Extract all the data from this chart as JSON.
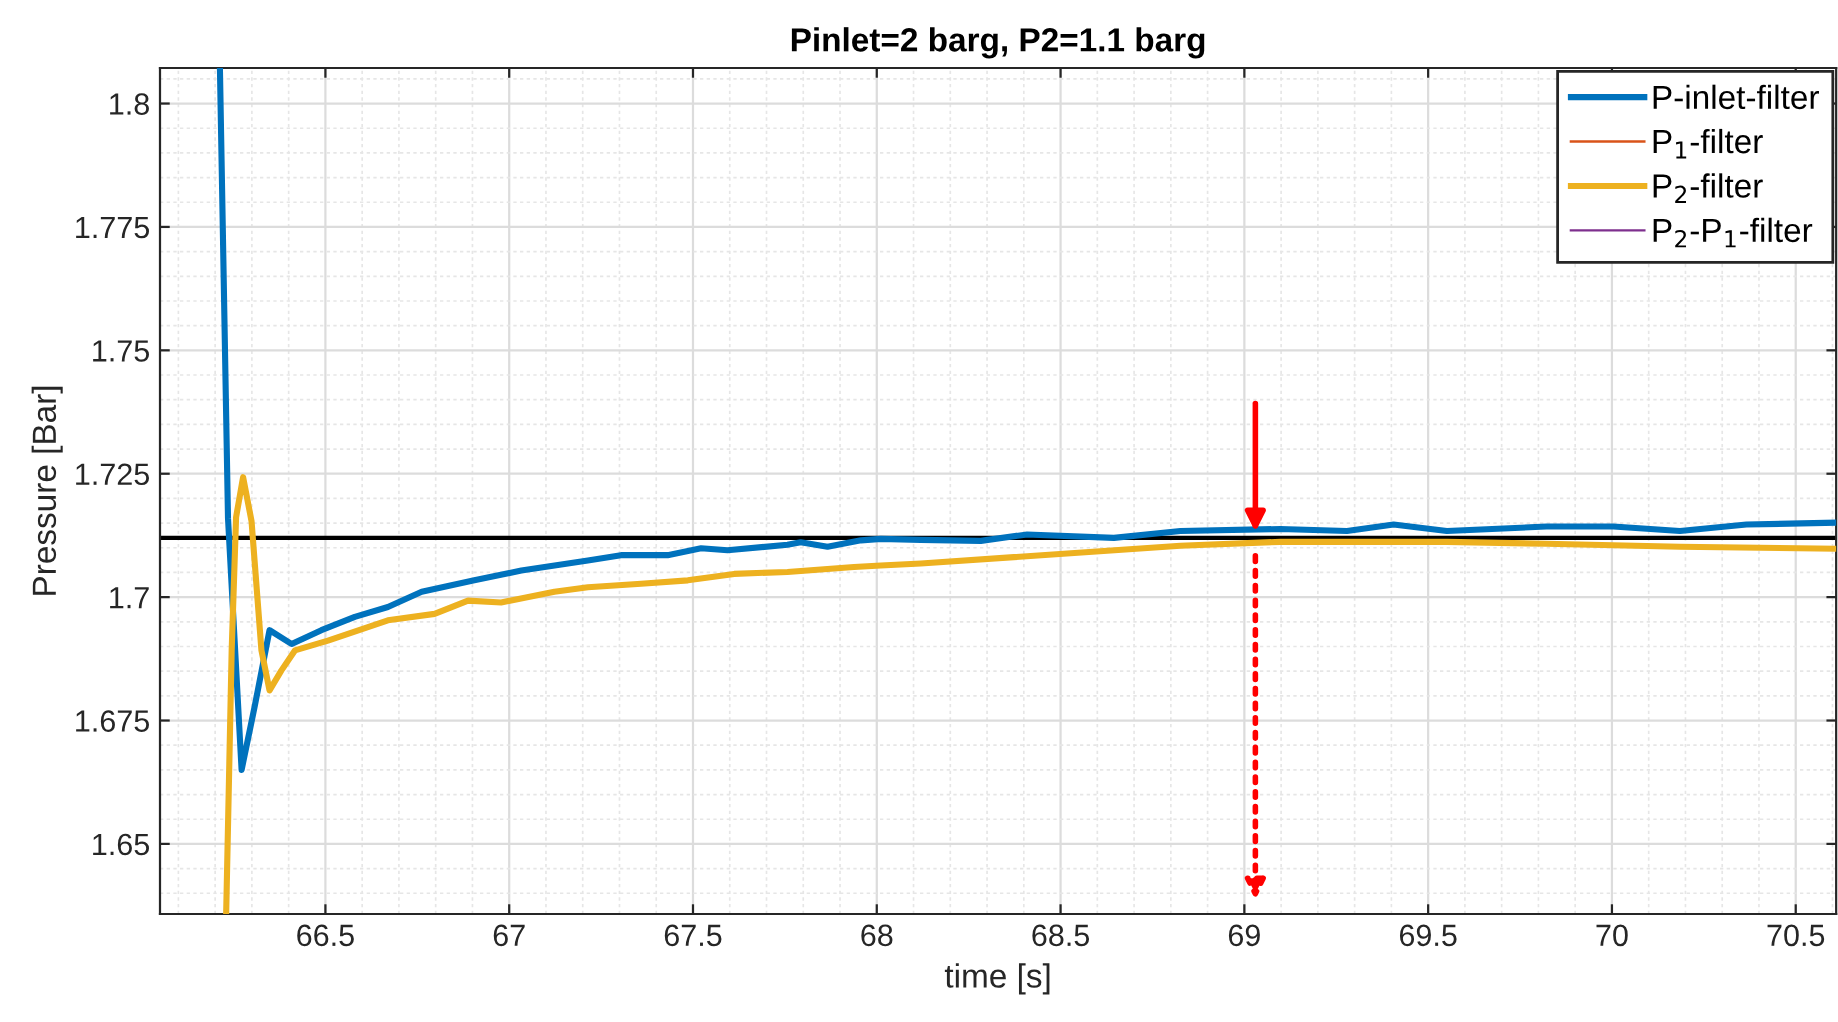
{
  "chart_data": {
    "type": "line",
    "title": "Pinlet=2 barg, P2=1.1 barg",
    "xlabel": "time [s]",
    "ylabel": "Pressure [Bar]",
    "xlim": [
      66.05,
      70.61
    ],
    "ylim": [
      1.6358,
      1.8072
    ],
    "xticks": [
      66.5,
      67,
      67.5,
      68,
      68.5,
      69,
      69.5,
      70,
      70.5
    ],
    "yticks": [
      1.65,
      1.675,
      1.7,
      1.725,
      1.75,
      1.775,
      1.8
    ],
    "grid": true,
    "legend": "top right",
    "line_style": "solid",
    "marker": "none",
    "ref_lines": [
      {
        "axis": "y",
        "value": 1.712,
        "color": "#000000",
        "line_style": "solid"
      }
    ],
    "series": [
      {
        "name": "P-inlet-filter",
        "color": "#0072bd",
        "x": [
          66.213,
          66.235,
          66.272,
          66.308,
          66.348,
          66.408,
          66.489,
          66.58,
          66.67,
          66.762,
          66.905,
          67.033,
          67.214,
          67.304,
          67.431,
          67.522,
          67.594,
          67.757,
          67.793,
          67.866,
          67.957,
          68.011,
          68.12,
          68.283,
          68.409,
          68.645,
          68.826,
          69.098,
          69.279,
          69.406,
          69.551,
          69.822,
          70.004,
          70.185,
          70.366,
          70.61
        ],
        "values": [
          1.8072,
          1.716,
          1.665,
          1.678,
          1.6933,
          1.6905,
          1.6933,
          1.696,
          1.698,
          1.7011,
          1.7034,
          1.7054,
          1.7074,
          1.7085,
          1.7085,
          1.7099,
          1.7095,
          1.7106,
          1.7111,
          1.7102,
          1.7115,
          1.7118,
          1.7116,
          1.7114,
          1.7127,
          1.712,
          1.7134,
          1.7138,
          1.7134,
          1.7147,
          1.7134,
          1.7143,
          1.7143,
          1.7134,
          1.7147,
          1.7151
        ]
      },
      {
        "name": "P$_{1}$-filter",
        "color": "#d95319",
        "values": [
          null,
          null
        ]
      },
      {
        "name": "P$_{2}$-filter",
        "color": "#edb120",
        "x": [
          66.23,
          66.245,
          66.257,
          66.276,
          66.299,
          66.326,
          66.348,
          66.38,
          66.417,
          66.507,
          66.67,
          66.797,
          66.888,
          66.978,
          67.123,
          67.214,
          67.359,
          67.486,
          67.612,
          67.757,
          67.938,
          68.011,
          68.12,
          68.373,
          68.826,
          69.098,
          69.551,
          69.822,
          70.185,
          70.61
        ],
        "values": [
          1.6358,
          1.6892,
          1.7162,
          1.7243,
          1.7154,
          1.6892,
          1.6811,
          1.6851,
          1.6892,
          1.6912,
          1.6953,
          1.6966,
          1.6993,
          1.6989,
          1.7011,
          1.702,
          1.7027,
          1.7034,
          1.7047,
          1.7051,
          1.7061,
          1.7064,
          1.7068,
          1.7081,
          1.7104,
          1.7112,
          1.7112,
          1.7108,
          1.7102,
          1.7098
        ]
      },
      {
        "name": "P$_{2}$-P$_{1}$-filter",
        "color": "#7e2f8e",
        "values": [
          null,
          null
        ]
      }
    ]
  }
}
